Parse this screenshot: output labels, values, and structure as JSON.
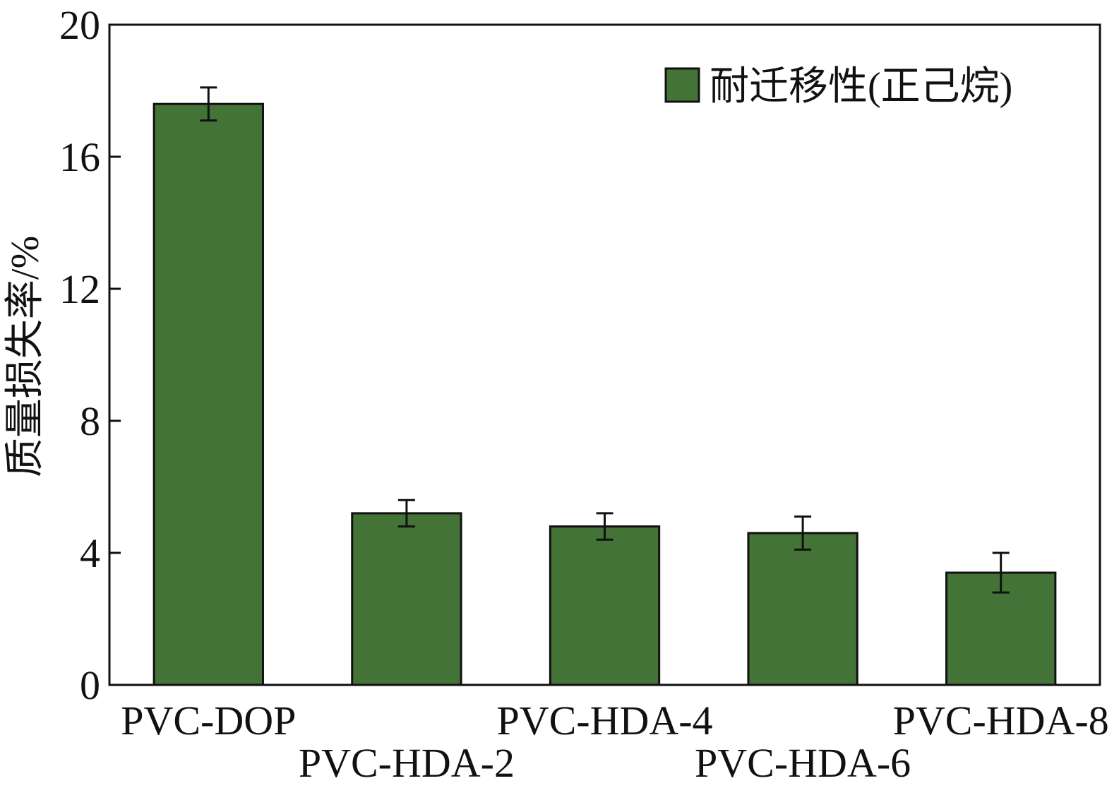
{
  "chart_data": {
    "type": "bar",
    "title": "",
    "xlabel": "",
    "ylabel": "质量损失率/%",
    "categories": [
      "PVC-DOP",
      "PVC-HDA-2",
      "PVC-HDA-4",
      "PVC-HDA-6",
      "PVC-HDA-8"
    ],
    "series": [
      {
        "name": "耐迁移性(正己烷)",
        "values": [
          17.6,
          5.2,
          4.8,
          4.6,
          3.4
        ],
        "errors": [
          0.5,
          0.4,
          0.4,
          0.5,
          0.6
        ],
        "color": "#437337"
      }
    ],
    "ylim": [
      0,
      20
    ],
    "yticks": [
      0,
      4,
      8,
      12,
      16,
      20
    ],
    "grid": false,
    "legend": "top-right",
    "colors": {
      "bar_fill": "#437337",
      "stroke": "#111111"
    }
  }
}
